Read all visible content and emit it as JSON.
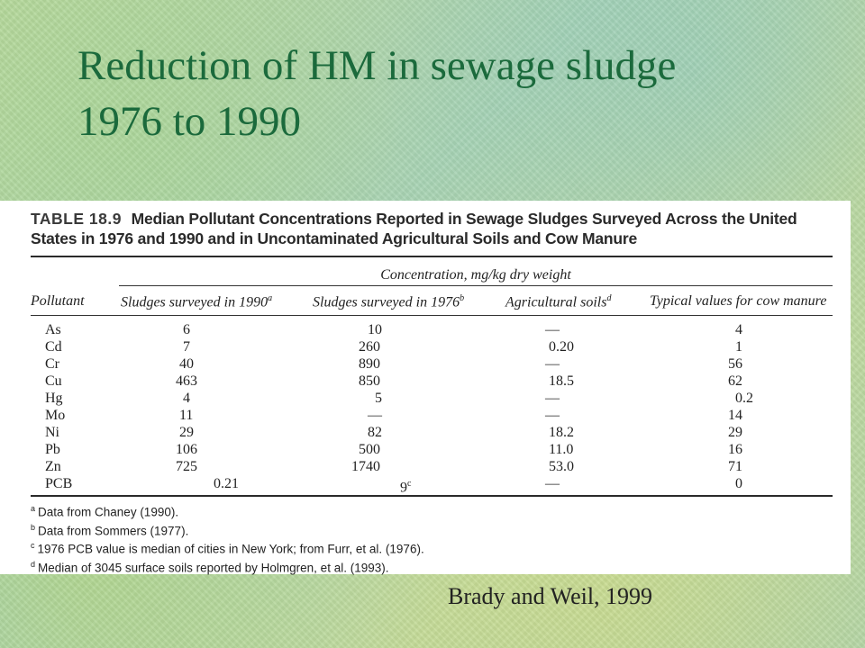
{
  "slide": {
    "title_line1": "Reduction of HM in sewage sludge",
    "title_line2": "1976 to 1990",
    "credit": "Brady and Weil, 1999"
  },
  "table": {
    "number": "TABLE 18.9",
    "caption": "Median Pollutant Concentrations Reported in Sewage Sludges Surveyed Across the United States in 1976 and 1990 and in Uncontaminated Agricultural Soils and Cow Manure",
    "span_header": "Concentration, mg/kg dry weight",
    "columns": {
      "pollutant": "Pollutant",
      "sludge_1990": "Sludges surveyed in 1990",
      "sludge_1990_note": "a",
      "sludge_1976": "Sludges surveyed in 1976",
      "sludge_1976_note": "b",
      "ag_soils": "Agricultural soils",
      "ag_soils_note": "d",
      "cow_manure": "Typical values for cow manure"
    },
    "rows": [
      {
        "pollutant": "As",
        "s1990": "6",
        "s1976": "10",
        "soil": "—",
        "manure": "4"
      },
      {
        "pollutant": "Cd",
        "s1990": "7",
        "s1976": "260",
        "soil": "0.20",
        "manure": "1"
      },
      {
        "pollutant": "Cr",
        "s1990": "40",
        "s1976": "890",
        "soil": "—",
        "manure": "56"
      },
      {
        "pollutant": "Cu",
        "s1990": "463",
        "s1976": "850",
        "soil": "18.5",
        "manure": "62"
      },
      {
        "pollutant": "Hg",
        "s1990": "4",
        "s1976": "5",
        "soil": "—",
        "manure": "0.2"
      },
      {
        "pollutant": "Mo",
        "s1990": "11",
        "s1976": "—",
        "soil": "—",
        "manure": "14"
      },
      {
        "pollutant": "Ni",
        "s1990": "29",
        "s1976": "82",
        "soil": "18.2",
        "manure": "29"
      },
      {
        "pollutant": "Pb",
        "s1990": "106",
        "s1976": "500",
        "soil": "11.0",
        "manure": "16"
      },
      {
        "pollutant": "Zn",
        "s1990": "725",
        "s1976": "1740",
        "soil": "53.0",
        "manure": "71"
      },
      {
        "pollutant": "PCB",
        "s1990": "0.21",
        "s1976": "9",
        "s1976_note": "c",
        "soil": "—",
        "manure": "0"
      }
    ],
    "footnotes": [
      {
        "mark": "a",
        "text": "Data from Chaney (1990)."
      },
      {
        "mark": "b",
        "text": "Data from Sommers (1977)."
      },
      {
        "mark": "c",
        "text": "1976 PCB value is median of cities in New York; from Furr, et al. (1976)."
      },
      {
        "mark": "d",
        "text": "Median of 3045 surface soils reported by Holmgren, et al. (1993)."
      }
    ]
  }
}
